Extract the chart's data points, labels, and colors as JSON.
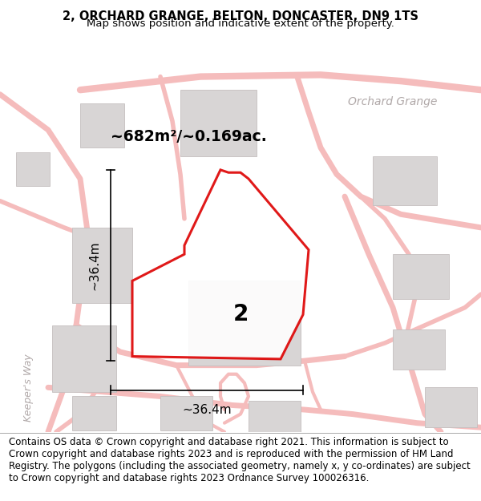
{
  "title_line1": "2, ORCHARD GRANGE, BELTON, DONCASTER, DN9 1TS",
  "title_line2": "Map shows position and indicative extent of the property.",
  "footer_text": "Contains OS data © Crown copyright and database right 2021. This information is subject to Crown copyright and database rights 2023 and is reproduced with the permission of HM Land Registry. The polygons (including the associated geometry, namely x, y co-ordinates) are subject to Crown copyright and database rights 2023 Ordnance Survey 100026316.",
  "area_label": "~682m²/~0.169ac.",
  "street_label": "Orchard Grange",
  "road_label": "Keeper's Way",
  "property_number": "2",
  "dim_h": "~36.4m",
  "dim_w": "~36.4m",
  "bg_color": "#ffffff",
  "map_bg": "#faf8f8",
  "road_color": "#f5bcbc",
  "building_color": "#d8d5d5",
  "building_edge": "#c4bfbf",
  "property_outline_color": "#dd0000",
  "dim_line_color": "#000000",
  "title_fontsize": 10.5,
  "subtitle_fontsize": 9.5,
  "label_fontsize": 13.5,
  "number_fontsize": 20,
  "street_label_fontsize": 10,
  "road_label_fontsize": 9,
  "footer_fontsize": 8.5
}
